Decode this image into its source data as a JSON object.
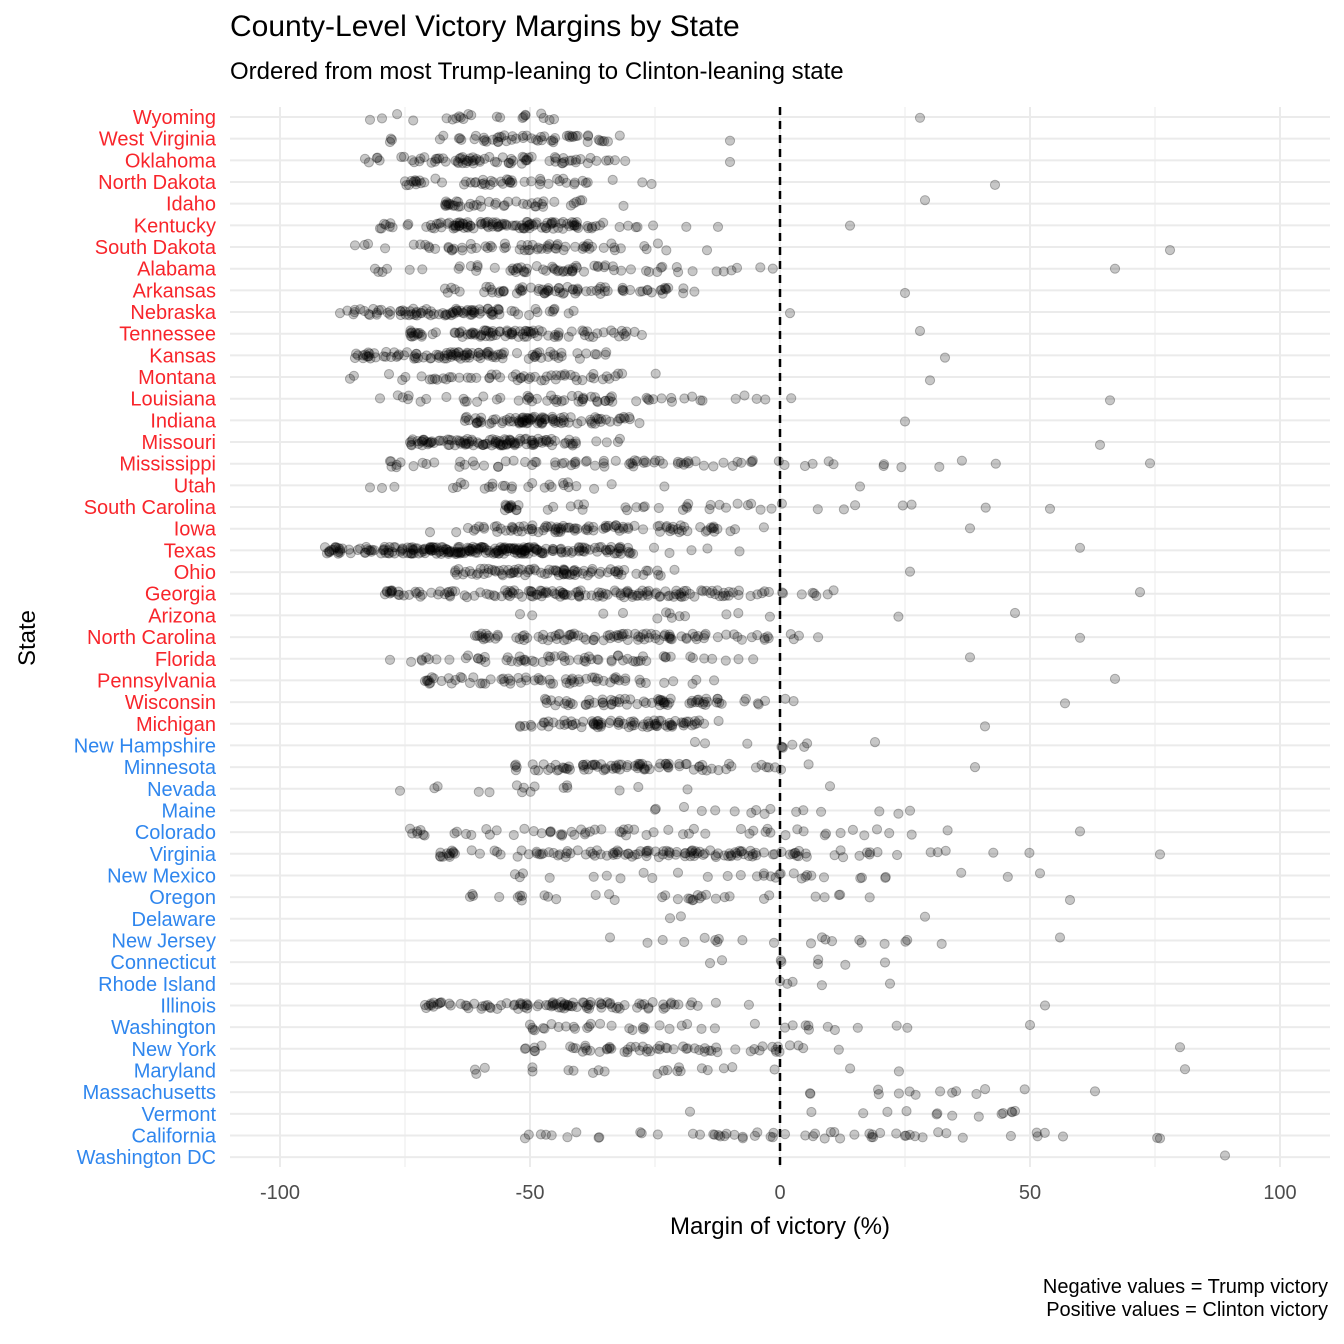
{
  "chart_data": {
    "type": "scatter",
    "title": "County-Level Victory Margins by State",
    "subtitle": "Ordered from most Trump-leaning to Clinton-leaning state",
    "xlabel": "Margin of victory (%)",
    "ylabel": "State",
    "xlim": [
      -110,
      110
    ],
    "x_ticks": [
      "-100",
      "-50",
      "0",
      "50",
      "100"
    ],
    "x_tick_values": [
      -100,
      -50,
      0,
      50,
      100
    ],
    "reference_line": {
      "x": 0,
      "style": "dashed"
    },
    "grid": true,
    "states": [
      {
        "name": "Wyoming",
        "winner": "Trump",
        "min": -82,
        "max": 28,
        "center": -60,
        "spread": 12,
        "count": 23
      },
      {
        "name": "West Virginia",
        "winner": "Trump",
        "min": -78,
        "max": -10,
        "center": -52,
        "spread": 12,
        "count": 55
      },
      {
        "name": "Oklahoma",
        "winner": "Trump",
        "min": -83,
        "max": -10,
        "center": -58,
        "spread": 13,
        "count": 77
      },
      {
        "name": "North Dakota",
        "winner": "Trump",
        "min": -75,
        "max": 43,
        "center": -55,
        "spread": 13,
        "count": 53
      },
      {
        "name": "Idaho",
        "winner": "Trump",
        "min": -67,
        "max": 29,
        "center": -55,
        "spread": 12,
        "count": 44
      },
      {
        "name": "Kentucky",
        "winner": "Trump",
        "min": -80,
        "max": 14,
        "center": -53,
        "spread": 14,
        "count": 120
      },
      {
        "name": "South Dakota",
        "winner": "Trump",
        "min": -85,
        "max": 78,
        "center": -50,
        "spread": 15,
        "count": 66
      },
      {
        "name": "Alabama",
        "winner": "Trump",
        "min": -81,
        "max": 67,
        "center": -45,
        "spread": 20,
        "count": 67
      },
      {
        "name": "Arkansas",
        "winner": "Trump",
        "min": -67,
        "max": 25,
        "center": -45,
        "spread": 14,
        "count": 75
      },
      {
        "name": "Nebraska",
        "winner": "Trump",
        "min": -88,
        "max": 2,
        "center": -65,
        "spread": 12,
        "count": 93
      },
      {
        "name": "Tennessee",
        "winner": "Trump",
        "min": -74,
        "max": 28,
        "center": -55,
        "spread": 12,
        "count": 95
      },
      {
        "name": "Kansas",
        "winner": "Trump",
        "min": -85,
        "max": 33,
        "center": -62,
        "spread": 12,
        "count": 105
      },
      {
        "name": "Montana",
        "winner": "Trump",
        "min": -86,
        "max": 30,
        "center": -50,
        "spread": 15,
        "count": 56
      },
      {
        "name": "Louisiana",
        "winner": "Trump",
        "min": -80,
        "max": 66,
        "center": -40,
        "spread": 20,
        "count": 64
      },
      {
        "name": "Indiana",
        "winner": "Trump",
        "min": -63,
        "max": 25,
        "center": -47,
        "spread": 10,
        "count": 92
      },
      {
        "name": "Missouri",
        "winner": "Trump",
        "min": -74,
        "max": 64,
        "center": -57,
        "spread": 12,
        "count": 115
      },
      {
        "name": "Mississippi",
        "winner": "Trump",
        "min": -78,
        "max": 74,
        "center": -30,
        "spread": 30,
        "count": 82
      },
      {
        "name": "Utah",
        "winner": "Trump",
        "min": -82,
        "max": 16,
        "center": -55,
        "spread": 15,
        "count": 29
      },
      {
        "name": "South Carolina",
        "winner": "Trump",
        "min": -55,
        "max": 54,
        "center": -15,
        "spread": 25,
        "count": 46
      },
      {
        "name": "Iowa",
        "winner": "Trump",
        "min": -70,
        "max": 38,
        "center": -35,
        "spread": 15,
        "count": 99
      },
      {
        "name": "Texas",
        "winner": "Trump",
        "min": -91,
        "max": 60,
        "center": -62,
        "spread": 18,
        "count": 254
      },
      {
        "name": "Ohio",
        "winner": "Trump",
        "min": -65,
        "max": 26,
        "center": -45,
        "spread": 12,
        "count": 88
      },
      {
        "name": "Georgia",
        "winner": "Trump",
        "min": -79,
        "max": 72,
        "center": -40,
        "spread": 22,
        "count": 159
      },
      {
        "name": "Arizona",
        "winner": "Trump",
        "min": -52,
        "max": 47,
        "center": -20,
        "spread": 25,
        "count": 15
      },
      {
        "name": "North Carolina",
        "winner": "Trump",
        "min": -61,
        "max": 60,
        "center": -30,
        "spread": 20,
        "count": 100
      },
      {
        "name": "Florida",
        "winner": "Trump",
        "min": -78,
        "max": 38,
        "center": -45,
        "spread": 18,
        "count": 67
      },
      {
        "name": "Pennsylvania",
        "winner": "Trump",
        "min": -71,
        "max": 67,
        "center": -45,
        "spread": 15,
        "count": 67
      },
      {
        "name": "Wisconsin",
        "winner": "Trump",
        "min": -47,
        "max": 57,
        "center": -25,
        "spread": 15,
        "count": 72
      },
      {
        "name": "Michigan",
        "winner": "Trump",
        "min": -52,
        "max": 41,
        "center": -30,
        "spread": 12,
        "count": 83
      },
      {
        "name": "New Hampshire",
        "winner": "Clinton",
        "min": -17,
        "max": 19,
        "center": 0,
        "spread": 10,
        "count": 10
      },
      {
        "name": "Minnesota",
        "winner": "Clinton",
        "min": -53,
        "max": 39,
        "center": -30,
        "spread": 15,
        "count": 87
      },
      {
        "name": "Nevada",
        "winner": "Clinton",
        "min": -76,
        "max": 10,
        "center": -45,
        "spread": 15,
        "count": 17
      },
      {
        "name": "Maine",
        "winner": "Clinton",
        "min": -25,
        "max": 26,
        "center": -5,
        "spread": 12,
        "count": 16
      },
      {
        "name": "Colorado",
        "winner": "Clinton",
        "min": -74,
        "max": 60,
        "center": -30,
        "spread": 25,
        "count": 64
      },
      {
        "name": "Virginia",
        "winner": "Clinton",
        "min": -68,
        "max": 76,
        "center": -25,
        "spread": 25,
        "count": 133
      },
      {
        "name": "New Mexico",
        "winner": "Clinton",
        "min": -53,
        "max": 52,
        "center": -10,
        "spread": 25,
        "count": 33
      },
      {
        "name": "Oregon",
        "winner": "Clinton",
        "min": -62,
        "max": 58,
        "center": -25,
        "spread": 20,
        "count": 36
      },
      {
        "name": "Delaware",
        "winner": "Clinton",
        "min": -22,
        "max": 29,
        "center": 0,
        "spread": 20,
        "count": 3
      },
      {
        "name": "New Jersey",
        "winner": "Clinton",
        "min": -34,
        "max": 56,
        "center": 5,
        "spread": 25,
        "count": 21
      },
      {
        "name": "Connecticut",
        "winner": "Clinton",
        "min": -14,
        "max": 21,
        "center": 5,
        "spread": 12,
        "count": 8
      },
      {
        "name": "Rhode Island",
        "winner": "Clinton",
        "min": 0,
        "max": 22,
        "center": 10,
        "spread": 8,
        "count": 5
      },
      {
        "name": "Illinois",
        "winner": "Clinton",
        "min": -71,
        "max": 53,
        "center": -45,
        "spread": 15,
        "count": 102
      },
      {
        "name": "Washington",
        "winner": "Clinton",
        "min": -50,
        "max": 50,
        "center": -20,
        "spread": 20,
        "count": 39
      },
      {
        "name": "New York",
        "winner": "Clinton",
        "min": -51,
        "max": 80,
        "center": -20,
        "spread": 20,
        "count": 62
      },
      {
        "name": "Maryland",
        "winner": "Clinton",
        "min": -61,
        "max": 81,
        "center": -30,
        "spread": 25,
        "count": 24
      },
      {
        "name": "Massachusetts",
        "winner": "Clinton",
        "min": 6,
        "max": 63,
        "center": 30,
        "spread": 15,
        "count": 14
      },
      {
        "name": "Vermont",
        "winner": "Clinton",
        "min": -18,
        "max": 47,
        "center": 25,
        "spread": 15,
        "count": 14
      },
      {
        "name": "California",
        "winner": "Clinton",
        "min": -51,
        "max": 76,
        "center": 5,
        "spread": 30,
        "count": 58
      },
      {
        "name": "Washington DC",
        "winner": "Clinton",
        "min": 89,
        "max": 89,
        "center": 89,
        "spread": 0,
        "count": 1
      }
    ]
  },
  "colors": {
    "trump": "#f8252b",
    "clinton": "#2f86ee",
    "point": "#000000",
    "grid": "#ebebeb",
    "text": "#4d4d4d"
  },
  "caption": {
    "line1": "Negative values = Trump victory",
    "line2": "Positive values = Clinton victory"
  }
}
